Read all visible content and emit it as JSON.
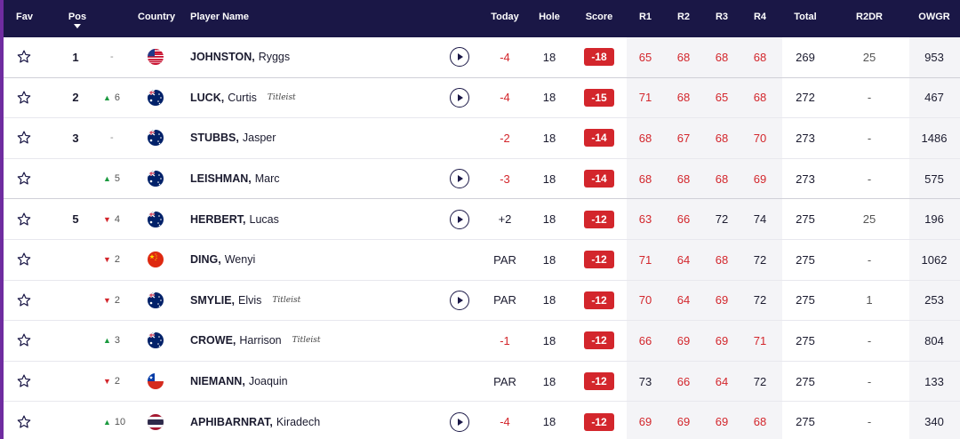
{
  "columns": {
    "fav": "Fav",
    "pos": "Pos",
    "country": "Country",
    "player_name": "Player Name",
    "today": "Today",
    "hole": "Hole",
    "score": "Score",
    "r1": "R1",
    "r2": "R2",
    "r3": "R3",
    "r4": "R4",
    "total": "Total",
    "r2dr": "R2DR",
    "owgr": "OWGR"
  },
  "colors": {
    "header_bg": "#1a1746",
    "accent_purple": "#6f2ca0",
    "under_par_red": "#d3262c",
    "up_green": "#1b9a3f",
    "round_col_bg": "#f4f4f7"
  },
  "players": [
    {
      "pos": "1",
      "move_dir": "none",
      "move_text": "-",
      "flag": "usa",
      "last": "JOHNSTON,",
      "first": "Ryggs",
      "sponsor": "",
      "play": true,
      "today": "-4",
      "hole": "18",
      "score": "-18",
      "r1": "65",
      "r2": "68",
      "r3": "68",
      "r4": "68",
      "total": "269",
      "r2dr": "25",
      "owgr": "953"
    },
    {
      "pos": "2",
      "move_dir": "up",
      "move_text": "6",
      "flag": "aus",
      "last": "LUCK,",
      "first": "Curtis",
      "sponsor": "Titleist",
      "play": true,
      "today": "-4",
      "hole": "18",
      "score": "-15",
      "r1": "71",
      "r2": "68",
      "r3": "65",
      "r4": "68",
      "total": "272",
      "r2dr": "-",
      "owgr": "467"
    },
    {
      "pos": "3",
      "move_dir": "none",
      "move_text": "-",
      "flag": "aus",
      "last": "STUBBS,",
      "first": "Jasper",
      "sponsor": "",
      "play": false,
      "today": "-2",
      "hole": "18",
      "score": "-14",
      "r1": "68",
      "r2": "67",
      "r3": "68",
      "r4": "70",
      "total": "273",
      "r2dr": "-",
      "owgr": "1486"
    },
    {
      "pos": "",
      "move_dir": "up",
      "move_text": "5",
      "flag": "aus",
      "last": "LEISHMAN,",
      "first": "Marc",
      "sponsor": "",
      "play": true,
      "today": "-3",
      "hole": "18",
      "score": "-14",
      "r1": "68",
      "r2": "68",
      "r3": "68",
      "r4": "69",
      "total": "273",
      "r2dr": "-",
      "owgr": "575"
    },
    {
      "pos": "5",
      "move_dir": "down",
      "move_text": "4",
      "flag": "aus",
      "last": "HERBERT,",
      "first": "Lucas",
      "sponsor": "",
      "play": true,
      "today": "+2",
      "hole": "18",
      "score": "-12",
      "r1": "63",
      "r2": "66",
      "r3": "72",
      "r4": "74",
      "total": "275",
      "r2dr": "25",
      "owgr": "196"
    },
    {
      "pos": "",
      "move_dir": "down",
      "move_text": "2",
      "flag": "chn",
      "last": "DING,",
      "first": "Wenyi",
      "sponsor": "",
      "play": false,
      "today": "PAR",
      "hole": "18",
      "score": "-12",
      "r1": "71",
      "r2": "64",
      "r3": "68",
      "r4": "72",
      "total": "275",
      "r2dr": "-",
      "owgr": "1062"
    },
    {
      "pos": "",
      "move_dir": "down",
      "move_text": "2",
      "flag": "aus",
      "last": "SMYLIE,",
      "first": "Elvis",
      "sponsor": "Titleist",
      "play": true,
      "today": "PAR",
      "hole": "18",
      "score": "-12",
      "r1": "70",
      "r2": "64",
      "r3": "69",
      "r4": "72",
      "total": "275",
      "r2dr": "1",
      "owgr": "253"
    },
    {
      "pos": "",
      "move_dir": "up",
      "move_text": "3",
      "flag": "aus",
      "last": "CROWE,",
      "first": "Harrison",
      "sponsor": "Titleist",
      "play": false,
      "today": "-1",
      "hole": "18",
      "score": "-12",
      "r1": "66",
      "r2": "69",
      "r3": "69",
      "r4": "71",
      "total": "275",
      "r2dr": "-",
      "owgr": "804"
    },
    {
      "pos": "",
      "move_dir": "down",
      "move_text": "2",
      "flag": "chl",
      "last": "NIEMANN,",
      "first": "Joaquin",
      "sponsor": "",
      "play": false,
      "today": "PAR",
      "hole": "18",
      "score": "-12",
      "r1": "73",
      "r2": "66",
      "r3": "64",
      "r4": "72",
      "total": "275",
      "r2dr": "-",
      "owgr": "133"
    },
    {
      "pos": "",
      "move_dir": "up",
      "move_text": "10",
      "flag": "tha",
      "last": "APHIBARNRAT,",
      "first": "Kiradech",
      "sponsor": "",
      "play": true,
      "today": "-4",
      "hole": "18",
      "score": "-12",
      "r1": "69",
      "r2": "69",
      "r3": "69",
      "r4": "68",
      "total": "275",
      "r2dr": "-",
      "owgr": "340"
    }
  ]
}
